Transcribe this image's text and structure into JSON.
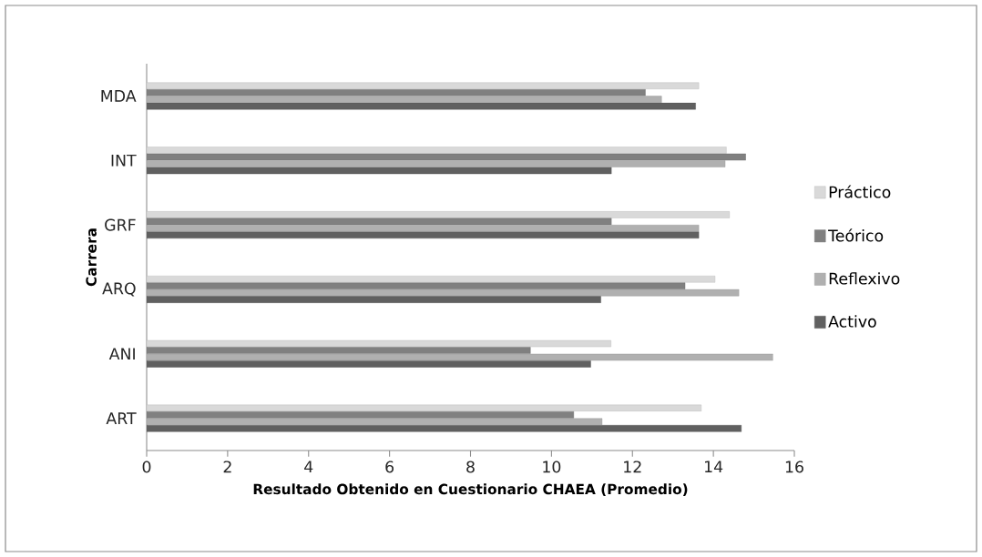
{
  "chart_data": {
    "type": "bar",
    "orientation": "horizontal",
    "xlabel": "Resultado Obtenido en Cuestionario CHAEA (Promedio)",
    "ylabel": "Carrera",
    "categories": [
      "MDA",
      "INT",
      "GRF",
      "ARQ",
      "ANI",
      "ART"
    ],
    "series": [
      {
        "name": "Práctico",
        "color": "#d9d9d9",
        "values": [
          13.64,
          14.32,
          14.4,
          14.04,
          11.47,
          13.7
        ]
      },
      {
        "name": "Teórico",
        "color": "#808080",
        "values": [
          12.32,
          14.8,
          11.48,
          13.3,
          9.48,
          10.55
        ]
      },
      {
        "name": "Reflexivo",
        "color": "#b0b0b0",
        "values": [
          12.72,
          14.29,
          13.64,
          14.63,
          15.47,
          11.25
        ]
      },
      {
        "name": "Activo",
        "color": "#606060",
        "values": [
          13.56,
          11.48,
          13.64,
          11.22,
          10.97,
          14.69
        ]
      }
    ],
    "xlim": [
      0,
      16
    ],
    "xticks": [
      0,
      2,
      4,
      6,
      8,
      10,
      12,
      14,
      16
    ],
    "grid": false,
    "legend": "right"
  }
}
